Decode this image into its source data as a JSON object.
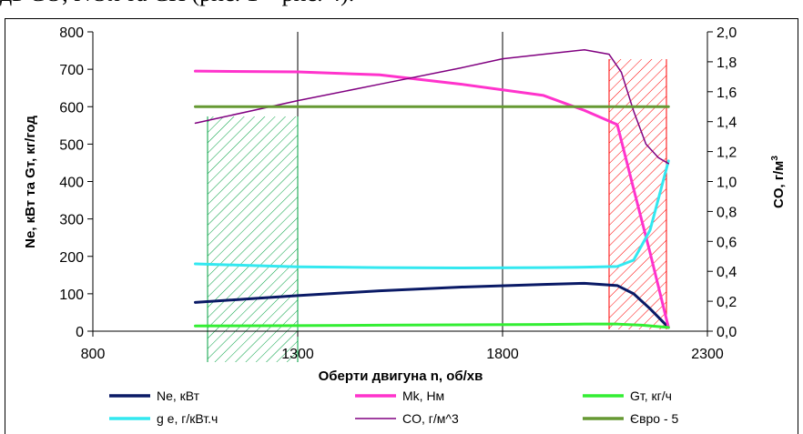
{
  "page": {
    "top_text": "дв CO, NOx та CH (рис. 1 – рис. 4)."
  },
  "chart_data": {
    "type": "line",
    "xlabel": "Оберти двигуна n, об/хв",
    "ylabel_left": "Ne, кВт та Gт, кг/год",
    "ylabel_right_main": "CO, г/м",
    "ylabel_right_sup": "3",
    "xlim": [
      800,
      2300
    ],
    "ylim_left": [
      0,
      800
    ],
    "ylim_right": [
      0,
      2.0
    ],
    "xticks": [
      "800",
      "1300",
      "1800",
      "2300"
    ],
    "yticks_left": [
      "0",
      "100",
      "200",
      "300",
      "400",
      "500",
      "600",
      "700",
      "800"
    ],
    "yticks_right": [
      "0,0",
      "0,2",
      "0,4",
      "0,6",
      "0,8",
      "1,0",
      "1,2",
      "1,4",
      "1,6",
      "1,8",
      "2,0"
    ],
    "grid": "vertical lines at x ticks",
    "legend_position": "bottom",
    "zones": [
      {
        "x_from": 1080,
        "x_to": 1300,
        "color": "#00a040",
        "hatch": true
      },
      {
        "x_from": 2060,
        "x_to": 2200,
        "color": "#ff0000",
        "hatch": true
      }
    ],
    "series": [
      {
        "name": "Ne, кВт",
        "color": "#0a1a66",
        "width": 3,
        "axis": "left",
        "x": [
          1050,
          1300,
          1500,
          1700,
          1900,
          2000,
          2080,
          2120,
          2160,
          2205
        ],
        "y": [
          77,
          95,
          108,
          118,
          125,
          128,
          122,
          100,
          60,
          10
        ]
      },
      {
        "name": "Mk, Нм",
        "color": "#ff33cc",
        "width": 3,
        "axis": "left",
        "x": [
          1050,
          1300,
          1500,
          1700,
          1900,
          2000,
          2080,
          2120,
          2160,
          2205
        ],
        "y": [
          695,
          693,
          685,
          660,
          630,
          590,
          552,
          380,
          210,
          10
        ]
      },
      {
        "name": "Gт, кг/ч",
        "color": "#33ee33",
        "width": 3,
        "axis": "left",
        "x": [
          1050,
          1300,
          1500,
          1700,
          1900,
          2000,
          2080,
          2140,
          2205
        ],
        "y": [
          14,
          15,
          16,
          17,
          18,
          19,
          19,
          16,
          10
        ]
      },
      {
        "name": "g e, г/кВт.ч",
        "color": "#33e8f0",
        "width": 3,
        "axis": "left",
        "x": [
          1050,
          1200,
          1300,
          1500,
          1700,
          1900,
          2000,
          2080,
          2120,
          2160,
          2205
        ],
        "y": [
          180,
          175,
          172,
          170,
          169,
          170,
          171,
          173,
          190,
          270,
          455
        ]
      },
      {
        "name": "CO, г/м^3",
        "color": "#800080",
        "width": 1.5,
        "axis": "right",
        "x": [
          1050,
          1300,
          1500,
          1700,
          1800,
          1900,
          2000,
          2060,
          2090,
          2120,
          2150,
          2180,
          2205
        ],
        "y": [
          1.39,
          1.54,
          1.65,
          1.76,
          1.82,
          1.85,
          1.88,
          1.85,
          1.73,
          1.47,
          1.25,
          1.16,
          1.12
        ]
      },
      {
        "name": "Євро - 5",
        "color": "#669933",
        "width": 3,
        "axis": "right",
        "x": [
          1050,
          2205
        ],
        "y": [
          1.5,
          1.5
        ]
      }
    ]
  }
}
